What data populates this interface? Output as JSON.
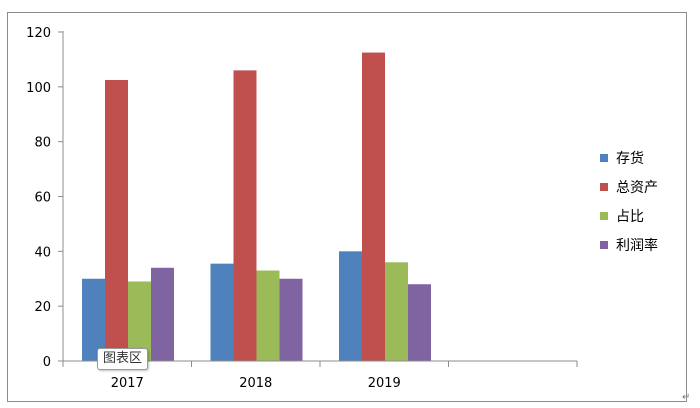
{
  "chart_data": {
    "type": "bar",
    "categories": [
      "2017",
      "2018",
      "2019"
    ],
    "series": [
      {
        "name": "存货",
        "values": [
          30,
          35.5,
          40
        ],
        "color": "#4f81bd"
      },
      {
        "name": "总资产",
        "values": [
          102.5,
          106,
          112.5
        ],
        "color": "#c0504d"
      },
      {
        "name": "占比",
        "values": [
          29,
          33,
          36
        ],
        "color": "#9bbb59"
      },
      {
        "name": "利润率",
        "values": [
          34,
          30,
          28
        ],
        "color": "#8064a2"
      }
    ],
    "ylim": [
      0,
      120
    ],
    "yticks": [
      0,
      20,
      40,
      60,
      80,
      100,
      120
    ],
    "grid": false,
    "legend_position": "right",
    "title": "",
    "xlabel": "",
    "ylabel": ""
  },
  "tooltip_label": "图表区",
  "paragraph_mark": "↵"
}
